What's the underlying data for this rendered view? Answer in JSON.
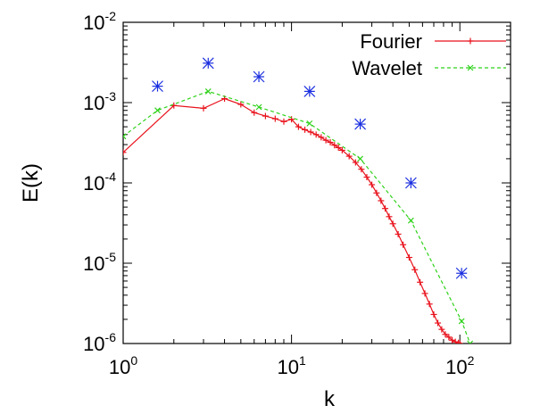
{
  "chart_data": {
    "type": "line",
    "xlabel": "k",
    "ylabel": "E(k)",
    "x_scale": "log",
    "y_scale": "log",
    "xlim": [
      1,
      200
    ],
    "ylim": [
      1e-06,
      0.01
    ],
    "grid": false,
    "legend_position": "top-right",
    "x_ticks": [
      {
        "value": 1,
        "base": "10",
        "exp": "0"
      },
      {
        "value": 10,
        "base": "10",
        "exp": "1"
      },
      {
        "value": 100,
        "base": "10",
        "exp": "2"
      }
    ],
    "y_ticks": [
      {
        "value": 1e-06,
        "base": "10",
        "exp": "-6"
      },
      {
        "value": 1e-05,
        "base": "10",
        "exp": "-5"
      },
      {
        "value": 0.0001,
        "base": "10",
        "exp": "-4"
      },
      {
        "value": 0.001,
        "base": "10",
        "exp": "-3"
      },
      {
        "value": 0.01,
        "base": "10",
        "exp": "-2"
      }
    ],
    "series": [
      {
        "name": "Fourier",
        "color": "#e8121c",
        "marker": "plus",
        "x": [
          1,
          2,
          3,
          4,
          5,
          6,
          7,
          8,
          9,
          10,
          11,
          12,
          13,
          14,
          15,
          16,
          17,
          18,
          19,
          20,
          22,
          24,
          26,
          28,
          30,
          32,
          34,
          36,
          38,
          40,
          43,
          46,
          50,
          54,
          58,
          62,
          66,
          70,
          74,
          78,
          82,
          86,
          90,
          94,
          98,
          100
        ],
        "y": [
          0.00024,
          0.00092,
          0.00085,
          0.00112,
          0.00095,
          0.00075,
          0.00068,
          0.00063,
          0.00058,
          0.00062,
          0.0005,
          0.00046,
          0.00043,
          0.0004,
          0.00037,
          0.00034,
          0.00032,
          0.000295,
          0.000275,
          0.000255,
          0.000215,
          0.00018,
          0.000148,
          0.000118,
          9.5e-05,
          7.5e-05,
          6e-05,
          4.8e-05,
          3.8e-05,
          3.1e-05,
          2.3e-05,
          1.7e-05,
          1.18e-05,
          8.3e-06,
          5.8e-06,
          4.2e-06,
          3.1e-06,
          2.3e-06,
          1.8e-06,
          1.5e-06,
          1.3e-06,
          1.2e-06,
          1.1e-06,
          1.05e-06,
          1.02e-06,
          1e-06
        ]
      },
      {
        "name": "Wavelet",
        "color": "#2fd21a",
        "marker": "cross",
        "dashed": true,
        "x": [
          1,
          1.6,
          3.2,
          6.4,
          12.8,
          25.6,
          51.2,
          102.4,
          115
        ],
        "y": [
          0.00038,
          0.0008,
          0.00138,
          0.00088,
          0.00055,
          0.0002,
          3.4e-05,
          1.9e-06,
          1e-06
        ]
      },
      {
        "name": "",
        "color": "#1a2ee0",
        "marker": "star",
        "line": false,
        "x": [
          1.6,
          3.2,
          6.4,
          12.8,
          25.6,
          51.2,
          102.4
        ],
        "y": [
          0.0016,
          0.0031,
          0.0021,
          0.00138,
          0.00054,
          0.0001,
          7.5e-06
        ]
      }
    ]
  }
}
